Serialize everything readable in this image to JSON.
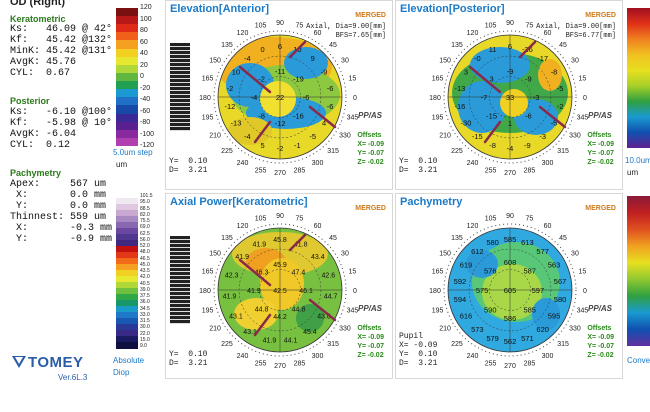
{
  "eye": "OD (Right)",
  "keratometric": {
    "title": "Keratometric",
    "rows": [
      {
        "k": "Ks:",
        "v": "46.09 @ 42°"
      },
      {
        "k": "Kf:",
        "v": "45.42 @132°"
      },
      {
        "k": "MinK:",
        "v": "45.42 @131°"
      },
      {
        "k": "AvgK:",
        "v": "45.76"
      },
      {
        "k": "CYL:",
        "v": "0.67"
      }
    ]
  },
  "posterior": {
    "title": "Posterior",
    "rows": [
      {
        "k": "Ks:",
        "v": "-6.10 @100°"
      },
      {
        "k": "Kf:",
        "v": "-5.98 @ 10°"
      },
      {
        "k": "AvgK:",
        "v": "-6.04"
      },
      {
        "k": "CYL:",
        "v": "0.12"
      }
    ]
  },
  "pachymetry_info": {
    "title": "Pachymetry",
    "rows": [
      {
        "k": "Apex:",
        "v": "567 um"
      },
      {
        "k": " X:",
        "v": "0.0 mm"
      },
      {
        "k": " Y:",
        "v": "0.0 mm"
      },
      {
        "k": "Thinnest:",
        "v": "559 um"
      },
      {
        "k": " X:",
        "v": "-0.3 mm"
      },
      {
        "k": " Y:",
        "v": "-0.9 mm"
      }
    ]
  },
  "logo": {
    "name": "TOMEY",
    "version": "Ver.6L.3"
  },
  "scale_elev": {
    "ticks": [
      "120",
      "100",
      "80",
      "60",
      "40",
      "20",
      "0",
      "-20",
      "-40",
      "-60",
      "-80",
      "-100",
      "-120"
    ],
    "caption": "5.0um step",
    "unit": "um"
  },
  "scale_axial": {
    "ticks": [
      "101.5",
      "95.0",
      "88.5",
      "82.0",
      "75.5",
      "69.0",
      "62.5",
      "56.0",
      "52.0",
      "48.0",
      "46.5",
      "45.0",
      "43.5",
      "42.0",
      "40.5",
      "39.0",
      "37.5",
      "36.0",
      "34.5",
      "33.0",
      "31.5",
      "30.0",
      "22.0",
      "15.0",
      "9.0"
    ],
    "caption": "Absolute",
    "unit": "Diop"
  },
  "scale_right_top": {
    "caption": "10.0um",
    "unit": "um"
  },
  "scale_right_bottom": {
    "caption": "Conve"
  },
  "panels": {
    "elev_ant": {
      "title": "Elevation[Anterior]",
      "merged": "MERGED",
      "axial1": "Axial, Dia=9.00[mm]",
      "axial2": "BFS=7.65[mm]",
      "y": "Y=  0.10",
      "d": "D=  3.21",
      "pp": "PP/AS",
      "offset": [
        "Offsets",
        "X= -0.09",
        "Y= -0.07",
        "Z= -0.02"
      ],
      "values": [
        "22",
        "-11",
        "-19",
        "-6",
        "-16",
        "-12",
        "-8",
        "-4",
        "-2",
        "6",
        "10",
        "9",
        "-9",
        "-6",
        "-6",
        "4",
        "-5",
        "-1",
        "-2",
        "5",
        "-4",
        "-13",
        "-12",
        "-2",
        "10",
        "-4",
        "0"
      ]
    },
    "elev_post": {
      "title": "Elevation[Posterior]",
      "merged": "MERGED",
      "axial1": "Axial, Dia=9.00[mm]",
      "axial2": "BFS=6.77[mm]",
      "y": "Y=  0.10",
      "d": "D=  3.21",
      "pp": "PP/AS",
      "offset": [
        "Offsets",
        "X= -0.09",
        "Y= -0.07",
        "Z= -0.02"
      ],
      "values": [
        "33",
        "-9",
        "-9",
        "-3",
        "-6",
        "1",
        "-15",
        "-7",
        "3",
        "6",
        "-26",
        "-17",
        "-8",
        "-5",
        "-2",
        "-5",
        "-3",
        "-9",
        "-4",
        "-8",
        "-15",
        "-30",
        "-16",
        "-13",
        "3",
        "-0",
        "11"
      ]
    },
    "axial": {
      "title": "Axial Power[Keratometric]",
      "merged": "MERGED",
      "y": "Y=  0.10",
      "d": "D=  3.21",
      "pp": "PP/AS",
      "offset": [
        "Offsets",
        "X= -0.09",
        "Y= -0.07",
        "Z= -0.02"
      ],
      "values": [
        "42.5",
        "45.9",
        "47.4",
        "46.1",
        "44.8",
        "44.2",
        "44.8",
        "41.9",
        "46.3",
        "45.8",
        "41.8",
        "43.4",
        "42.6",
        "44.7",
        "43.6",
        "45.4",
        "44.1",
        "41.9",
        "43.1",
        "43.1",
        "41.9",
        "42.3",
        "41.9",
        "41.9"
      ]
    },
    "pachy": {
      "title": "Pachymetry",
      "merged": "MERGED",
      "pupil": "Pupil",
      "x": "X= -0.09",
      "y": "Y=  0.10",
      "d": "D=  3.21",
      "pp": "PP/AS",
      "offset": [
        "Offsets",
        "X= -0.09",
        "Y= -0.07",
        "Z= -0.02"
      ],
      "values": [
        "605",
        "608",
        "587",
        "597",
        "585",
        "586",
        "590",
        "575",
        "576",
        "585",
        "613",
        "577",
        "563",
        "567",
        "580",
        "595",
        "620",
        "571",
        "562",
        "579",
        "573",
        "616",
        "594",
        "592",
        "619",
        "612",
        "580"
      ]
    }
  },
  "angles": [
    "90",
    "105",
    "120",
    "135",
    "150",
    "165",
    "180",
    "195",
    "210",
    "225",
    "240",
    "255",
    "270",
    "285",
    "300",
    "315",
    "330",
    "345",
    "0",
    "15",
    "30",
    "45",
    "60",
    "75"
  ]
}
